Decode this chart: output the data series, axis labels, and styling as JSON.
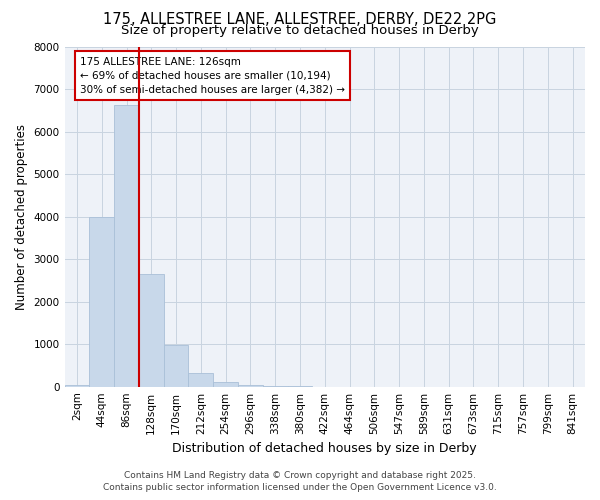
{
  "title_line1": "175, ALLESTREE LANE, ALLESTREE, DERBY, DE22 2PG",
  "title_line2": "Size of property relative to detached houses in Derby",
  "xlabel": "Distribution of detached houses by size in Derby",
  "ylabel": "Number of detached properties",
  "bar_labels": [
    "2sqm",
    "44sqm",
    "86sqm",
    "128sqm",
    "170sqm",
    "212sqm",
    "254sqm",
    "296sqm",
    "338sqm",
    "380sqm",
    "422sqm",
    "464sqm",
    "506sqm",
    "547sqm",
    "589sqm",
    "631sqm",
    "673sqm",
    "715sqm",
    "757sqm",
    "799sqm",
    "841sqm"
  ],
  "bar_values": [
    50,
    4000,
    6620,
    2650,
    980,
    330,
    120,
    50,
    10,
    5,
    2,
    1,
    0,
    0,
    0,
    0,
    0,
    0,
    0,
    0,
    0
  ],
  "bar_color": "#c8d8ea",
  "bar_edge_color": "#aac0d8",
  "vline_pos": 2.5,
  "vline_color": "#cc0000",
  "annotation_text": "175 ALLESTREE LANE: 126sqm\n← 69% of detached houses are smaller (10,194)\n30% of semi-detached houses are larger (4,382) →",
  "annotation_box_color": "#cc0000",
  "ylim": [
    0,
    8000
  ],
  "yticks": [
    0,
    1000,
    2000,
    3000,
    4000,
    5000,
    6000,
    7000,
    8000
  ],
  "grid_color": "#c8d4e0",
  "bg_color": "#eef2f8",
  "footer_line1": "Contains HM Land Registry data © Crown copyright and database right 2025.",
  "footer_line2": "Contains public sector information licensed under the Open Government Licence v3.0.",
  "title_fontsize": 10.5,
  "subtitle_fontsize": 9.5,
  "xlabel_fontsize": 9,
  "ylabel_fontsize": 8.5,
  "tick_fontsize": 7.5,
  "ann_fontsize": 7.5,
  "footer_fontsize": 6.5
}
